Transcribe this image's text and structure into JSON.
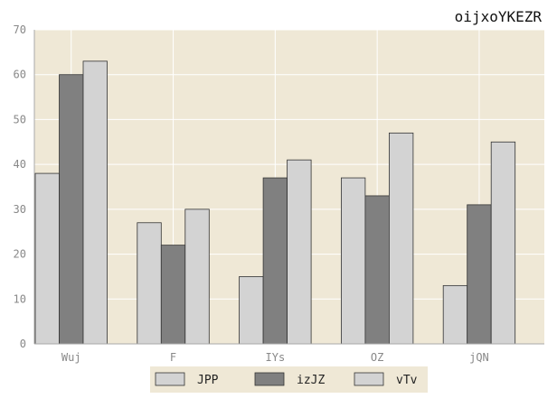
{
  "chart_data": {
    "type": "bar",
    "title": "oijxoYKEZR",
    "xlabel": "",
    "ylabel": "",
    "categories": [
      "Wuj",
      "F",
      "IYs",
      "OZ",
      "jQN"
    ],
    "series": [
      {
        "name": "JPP",
        "values": [
          38,
          27,
          15,
          37,
          13
        ],
        "color": "#d3d3d3"
      },
      {
        "name": "izJZ",
        "values": [
          60,
          22,
          37,
          33,
          31
        ],
        "color": "#808080"
      },
      {
        "name": "vTv",
        "values": [
          63,
          30,
          41,
          47,
          45
        ],
        "color": "#d3d3d3"
      }
    ],
    "ylim": [
      0,
      70
    ],
    "yticks": [
      0,
      10,
      20,
      30,
      40,
      50,
      60,
      70
    ],
    "grid": true,
    "legend_position": "bottom-center",
    "plot_background": "#efe8d6",
    "grid_color": "#ffffff"
  }
}
